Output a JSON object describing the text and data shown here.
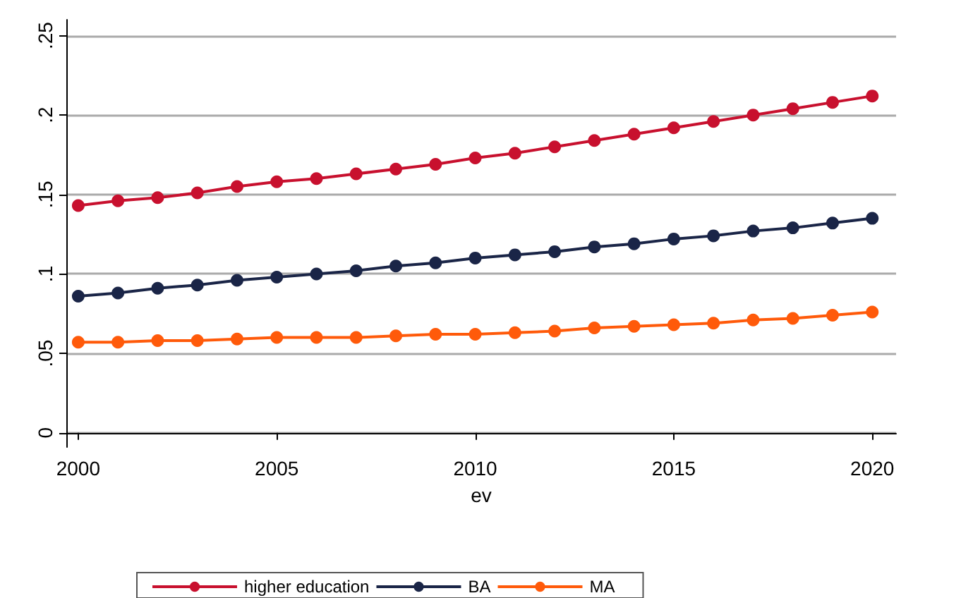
{
  "chart_data": {
    "type": "line",
    "xlabel": "ev",
    "x": [
      2000,
      2001,
      2002,
      2003,
      2004,
      2005,
      2006,
      2007,
      2008,
      2009,
      2010,
      2011,
      2012,
      2013,
      2014,
      2015,
      2016,
      2017,
      2018,
      2019,
      2020
    ],
    "series": [
      {
        "name": "higher education",
        "color": "#c8102e",
        "values": [
          0.143,
          0.146,
          0.148,
          0.151,
          0.155,
          0.158,
          0.16,
          0.163,
          0.166,
          0.169,
          0.173,
          0.176,
          0.18,
          0.184,
          0.188,
          0.192,
          0.196,
          0.2,
          0.204,
          0.208,
          0.212
        ]
      },
      {
        "name": "BA",
        "color": "#1a2547",
        "values": [
          0.086,
          0.088,
          0.091,
          0.093,
          0.096,
          0.098,
          0.1,
          0.102,
          0.105,
          0.107,
          0.11,
          0.112,
          0.114,
          0.117,
          0.119,
          0.122,
          0.124,
          0.127,
          0.129,
          0.132,
          0.135
        ]
      },
      {
        "name": "MA",
        "color": "#ff5a0a",
        "values": [
          0.057,
          0.057,
          0.058,
          0.058,
          0.059,
          0.06,
          0.06,
          0.06,
          0.061,
          0.062,
          0.062,
          0.063,
          0.064,
          0.066,
          0.067,
          0.068,
          0.069,
          0.071,
          0.072,
          0.074,
          0.076
        ]
      }
    ],
    "xlim": [
      1999.7,
      2020.6
    ],
    "xticks": [
      2000,
      2005,
      2010,
      2015,
      2020
    ],
    "ylim": [
      -0.009,
      0.26
    ],
    "yticks": [
      {
        "value": 0,
        "label": "0"
      },
      {
        "value": 0.05,
        "label": ".05"
      },
      {
        "value": 0.1,
        "label": ".1"
      },
      {
        "value": 0.15,
        "label": ".15"
      },
      {
        "value": 0.2,
        "label": ".2"
      },
      {
        "value": 0.25,
        "label": ".25"
      }
    ],
    "grid": "y",
    "legend": "bottom",
    "marker": "circle",
    "line_style": "solid"
  }
}
